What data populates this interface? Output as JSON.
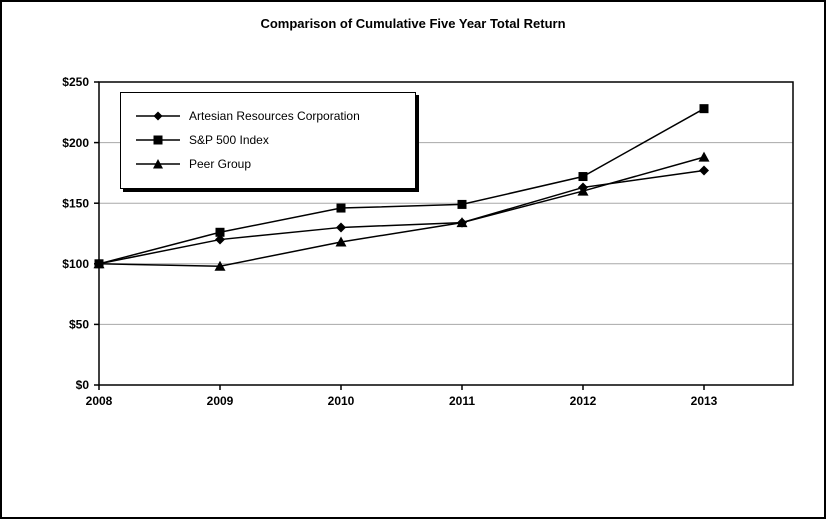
{
  "title": "Comparison of Cumulative Five Year Total Return",
  "chart_data": {
    "type": "line",
    "x": [
      "2008",
      "2009",
      "2010",
      "2011",
      "2012",
      "2013"
    ],
    "series": [
      {
        "name": "Artesian Resources Corporation",
        "marker": "diamond",
        "values": [
          100,
          120,
          130,
          134,
          163,
          177
        ]
      },
      {
        "name": "S&P 500 Index",
        "marker": "square",
        "values": [
          100,
          126,
          146,
          149,
          172,
          228
        ]
      },
      {
        "name": "Peer Group",
        "marker": "triangle",
        "values": [
          100,
          98,
          118,
          134,
          160,
          188
        ]
      }
    ],
    "ylim": [
      0,
      250
    ],
    "ytick_interval": 50,
    "ytick_labels": [
      "$0",
      "$50",
      "$100",
      "$150",
      "$200",
      "$250"
    ],
    "grid": true,
    "legend_position": "top-left",
    "line_color": "#000000",
    "grid_color": "#a8a8a8",
    "axis_color": "#000000",
    "background_color": "#ffffff"
  }
}
